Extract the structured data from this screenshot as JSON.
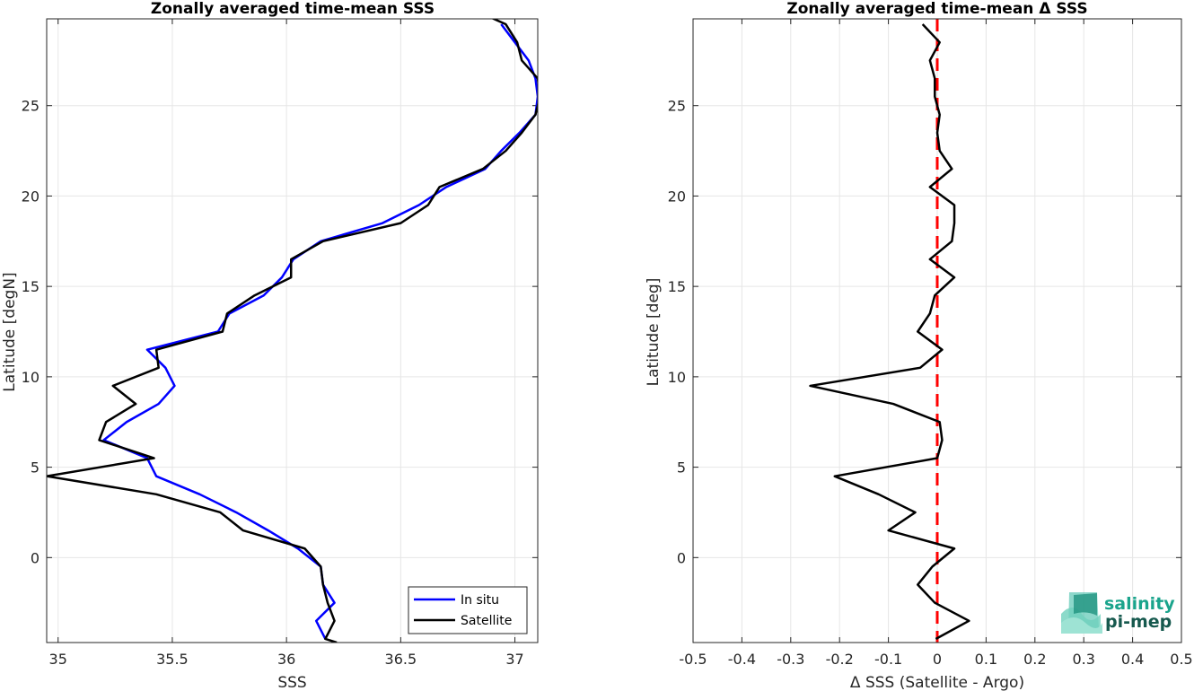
{
  "chart_data": [
    {
      "type": "line",
      "title": "Zonally averaged time-mean SSS",
      "xlabel": "SSS",
      "ylabel": "Latitude [degN]",
      "xlim": [
        34.95,
        37.1
      ],
      "ylim": [
        -4.7,
        29.8
      ],
      "xticks": [
        "35",
        "35.5",
        "36",
        "36.5",
        "37"
      ],
      "yticks": [
        "0",
        "5",
        "10",
        "15",
        "20",
        "25"
      ],
      "grid": true,
      "legend_position": "bottom-right",
      "series": [
        {
          "name": "In situ",
          "color": "#0000ff",
          "points": [
            [
              36.17,
              -4.5
            ],
            [
              36.13,
              -3.5
            ],
            [
              36.21,
              -2.5
            ],
            [
              36.16,
              -1.5
            ],
            [
              36.15,
              -0.5
            ],
            [
              36.05,
              0.5
            ],
            [
              35.92,
              1.5
            ],
            [
              35.78,
              2.5
            ],
            [
              35.62,
              3.5
            ],
            [
              35.43,
              4.5
            ],
            [
              35.39,
              5.5
            ],
            [
              35.2,
              6.5
            ],
            [
              35.3,
              7.5
            ],
            [
              35.44,
              8.5
            ],
            [
              35.51,
              9.5
            ],
            [
              35.47,
              10.5
            ],
            [
              35.39,
              11.5
            ],
            [
              35.7,
              12.5
            ],
            [
              35.75,
              13.5
            ],
            [
              35.9,
              14.5
            ],
            [
              35.98,
              15.5
            ],
            [
              36.03,
              16.5
            ],
            [
              36.15,
              17.5
            ],
            [
              36.42,
              18.5
            ],
            [
              36.58,
              19.5
            ],
            [
              36.7,
              20.5
            ],
            [
              36.87,
              21.5
            ],
            [
              36.94,
              22.5
            ],
            [
              37.02,
              23.5
            ],
            [
              37.09,
              24.5
            ],
            [
              37.1,
              25.5
            ],
            [
              37.09,
              26.5
            ],
            [
              37.06,
              27.5
            ],
            [
              37.0,
              28.5
            ],
            [
              36.94,
              29.5
            ]
          ]
        },
        {
          "name": "Satellite",
          "color": "#000000",
          "points": [
            [
              36.22,
              -4.7
            ],
            [
              36.17,
              -4.5
            ],
            [
              36.21,
              -3.5
            ],
            [
              36.18,
              -2.5
            ],
            [
              36.16,
              -1.5
            ],
            [
              36.15,
              -0.5
            ],
            [
              36.08,
              0.5
            ],
            [
              35.81,
              1.5
            ],
            [
              35.71,
              2.5
            ],
            [
              35.43,
              3.5
            ],
            [
              34.95,
              4.5
            ],
            [
              35.42,
              5.5
            ],
            [
              35.18,
              6.5
            ],
            [
              35.21,
              7.5
            ],
            [
              35.34,
              8.5
            ],
            [
              35.24,
              9.5
            ],
            [
              35.44,
              10.5
            ],
            [
              35.43,
              11.5
            ],
            [
              35.72,
              12.5
            ],
            [
              35.74,
              13.5
            ],
            [
              35.86,
              14.5
            ],
            [
              36.02,
              15.5
            ],
            [
              36.02,
              16.5
            ],
            [
              36.16,
              17.5
            ],
            [
              36.5,
              18.5
            ],
            [
              36.62,
              19.5
            ],
            [
              36.67,
              20.5
            ],
            [
              36.86,
              21.5
            ],
            [
              36.96,
              22.5
            ],
            [
              37.03,
              23.5
            ],
            [
              37.09,
              24.5
            ],
            [
              37.11,
              25.5
            ],
            [
              37.1,
              26.5
            ],
            [
              37.03,
              27.5
            ],
            [
              37.01,
              28.5
            ],
            [
              36.96,
              29.5
            ],
            [
              36.89,
              29.9
            ]
          ]
        }
      ]
    },
    {
      "type": "line",
      "title": "Zonally averaged time-mean Δ SSS",
      "xlabel": "Δ SSS (Satellite - Argo)",
      "ylabel": "Latitude [deg]",
      "xlim": [
        -0.5,
        0.5
      ],
      "ylim": [
        -4.7,
        29.8
      ],
      "xticks": [
        "-0.5",
        "-0.4",
        "-0.3",
        "-0.2",
        "-0.1",
        "0",
        "0.1",
        "0.2",
        "0.3",
        "0.4",
        "0.5"
      ],
      "yticks": [
        "0",
        "5",
        "10",
        "15",
        "20",
        "25"
      ],
      "grid": true,
      "reference_line": {
        "x": 0,
        "color": "#ff0000",
        "style": "dashed"
      },
      "series": [
        {
          "color": "#000000",
          "points": [
            [
              -0.003,
              -4.5
            ],
            [
              0.065,
              -3.5
            ],
            [
              -0.005,
              -2.5
            ],
            [
              -0.04,
              -1.5
            ],
            [
              -0.01,
              -0.5
            ],
            [
              0.035,
              0.5
            ],
            [
              -0.1,
              1.5
            ],
            [
              -0.045,
              2.5
            ],
            [
              -0.12,
              3.5
            ],
            [
              -0.21,
              4.5
            ],
            [
              0.0,
              5.5
            ],
            [
              0.01,
              6.5
            ],
            [
              0.005,
              7.5
            ],
            [
              -0.09,
              8.5
            ],
            [
              -0.26,
              9.5
            ],
            [
              -0.035,
              10.5
            ],
            [
              0.01,
              11.5
            ],
            [
              -0.04,
              12.5
            ],
            [
              -0.015,
              13.5
            ],
            [
              -0.005,
              14.5
            ],
            [
              0.035,
              15.5
            ],
            [
              -0.015,
              16.5
            ],
            [
              0.03,
              17.5
            ],
            [
              0.035,
              18.5
            ],
            [
              0.035,
              19.5
            ],
            [
              -0.015,
              20.5
            ],
            [
              0.03,
              21.5
            ],
            [
              0.005,
              22.5
            ],
            [
              0.0,
              23.5
            ],
            [
              0.005,
              24.5
            ],
            [
              -0.005,
              25.5
            ],
            [
              -0.005,
              26.5
            ],
            [
              -0.015,
              27.5
            ],
            [
              0.005,
              28.5
            ],
            [
              -0.03,
              29.5
            ]
          ]
        }
      ]
    }
  ],
  "logo": {
    "line1": "salinity",
    "line2": "pi-mep",
    "color1": "#1aa48c",
    "color2": "#16594e"
  }
}
